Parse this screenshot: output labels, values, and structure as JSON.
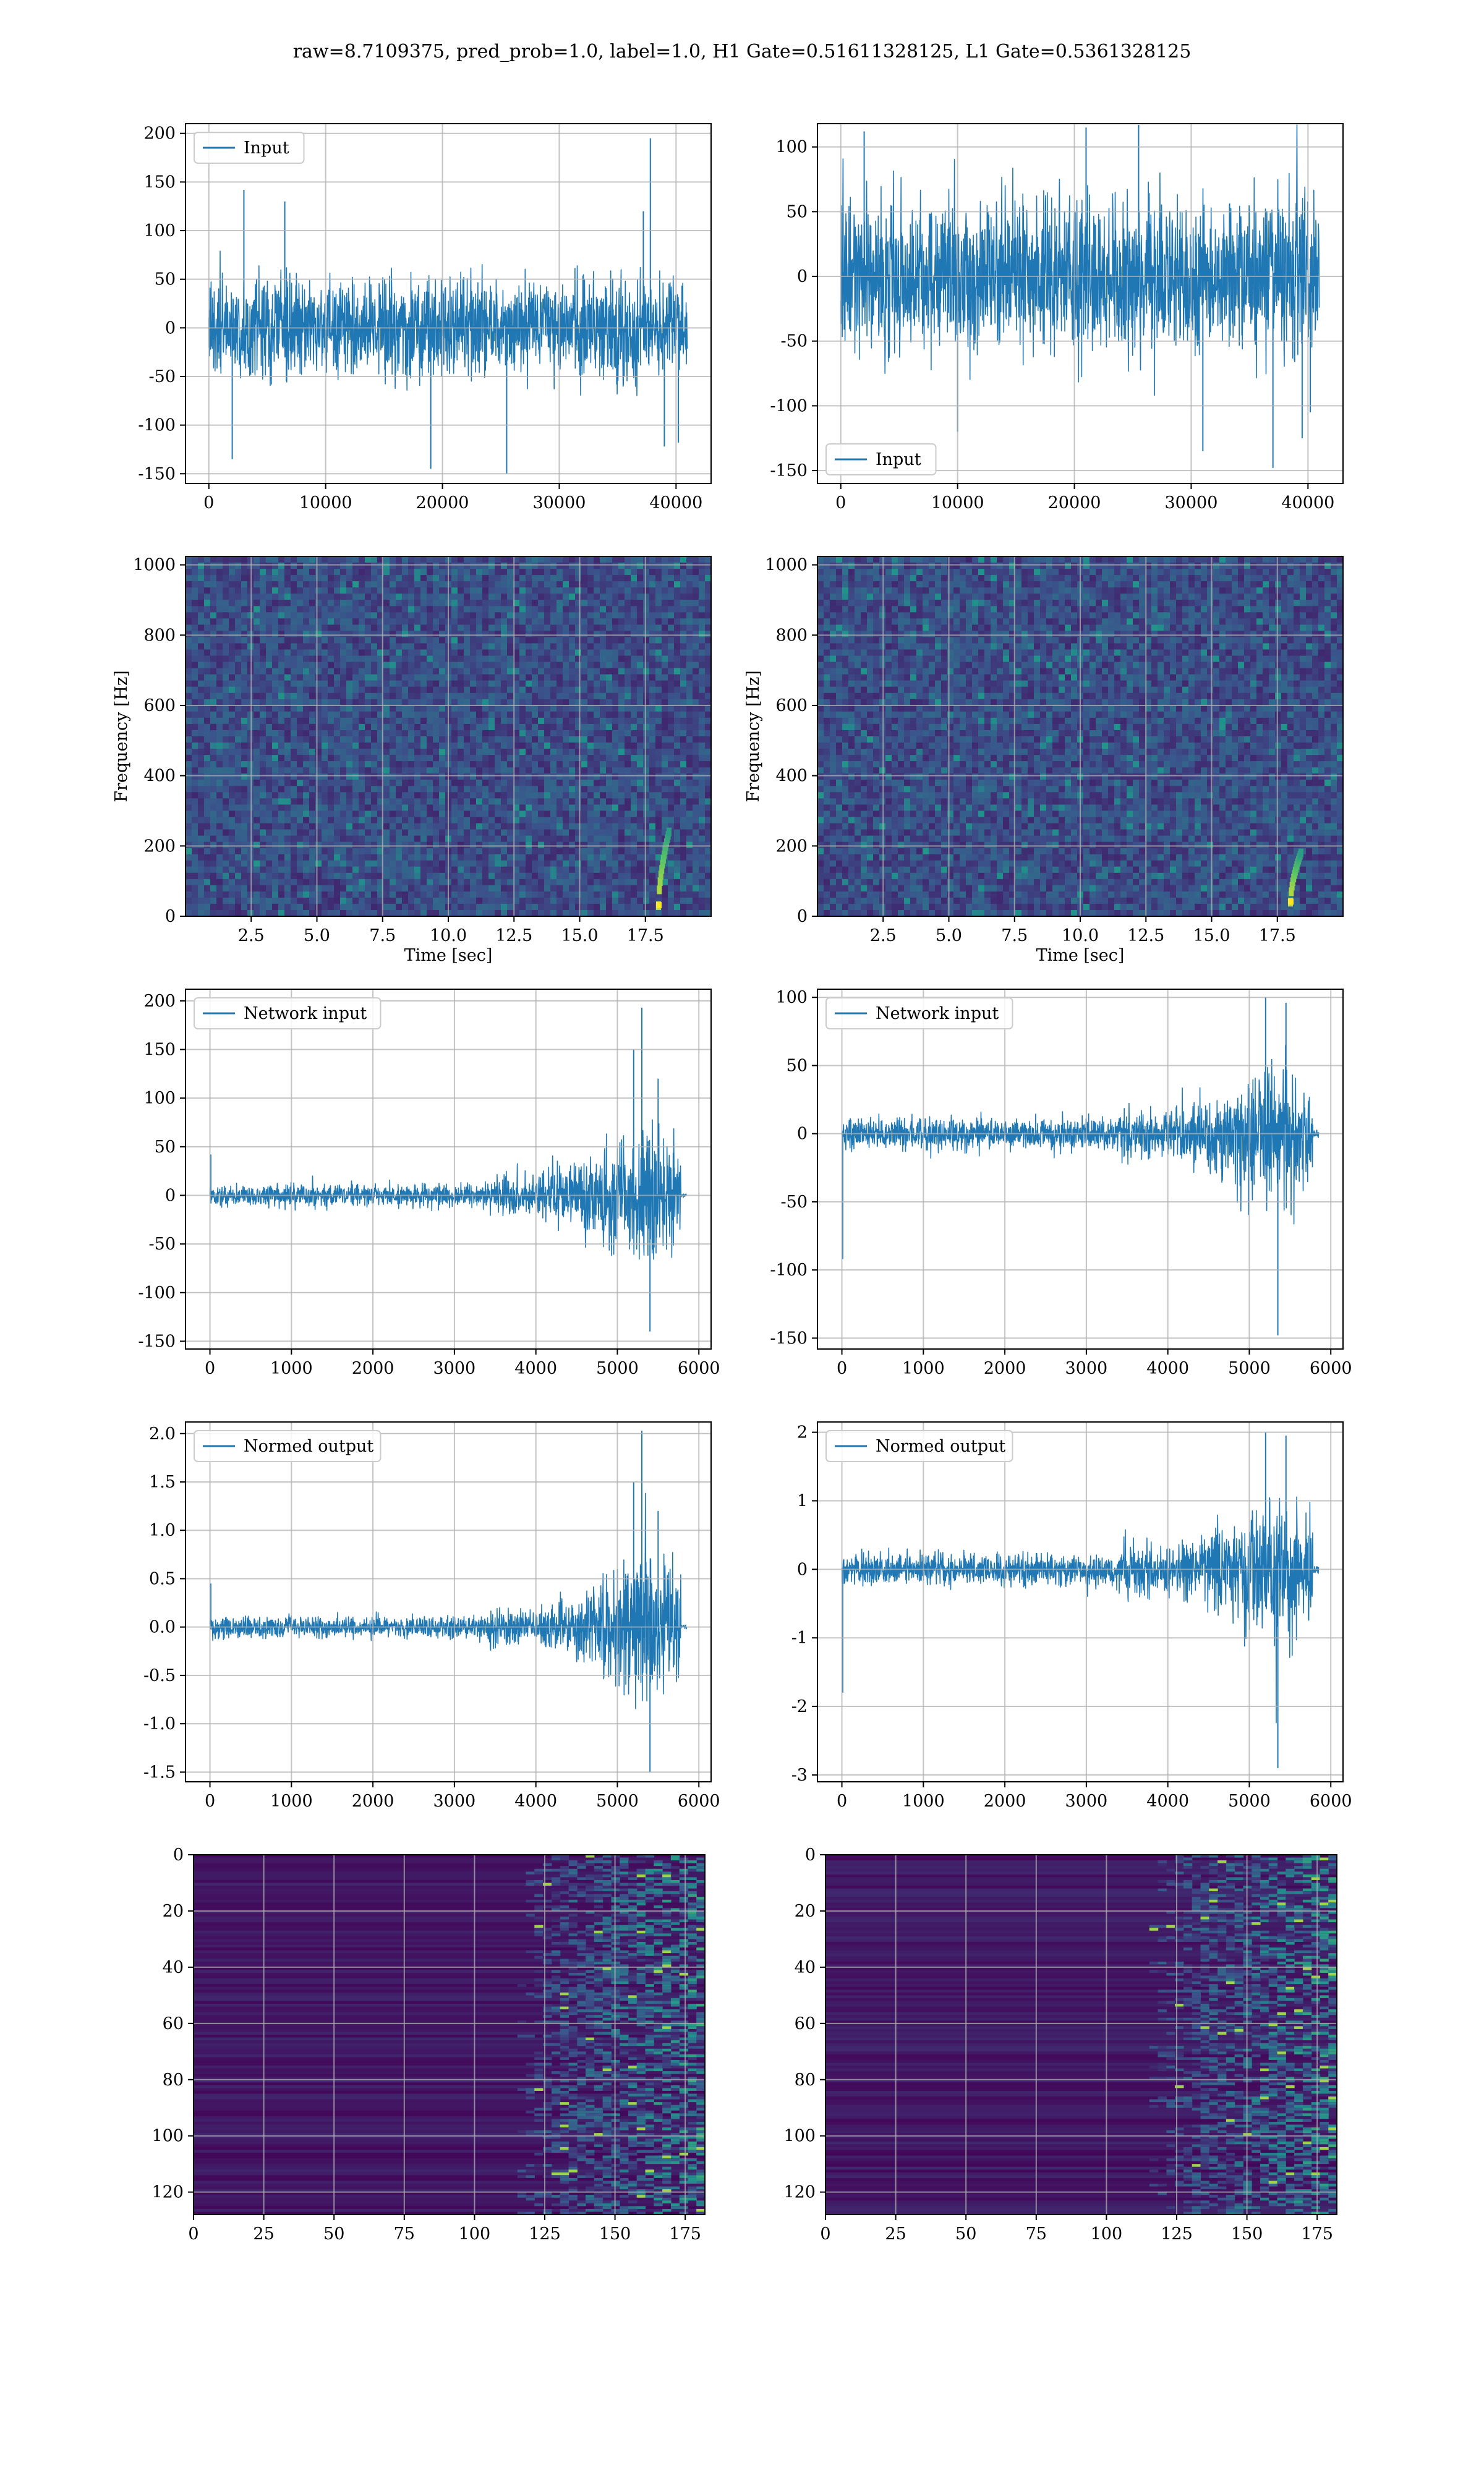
{
  "suptitle": "raw=8.7109375, pred_prob=1.0, label=1.0, H1 Gate=0.51611328125, L1 Gate=0.5361328125",
  "colors": {
    "line": "#1f77b4",
    "grid": "#b0b0b0",
    "viridis_dark": "#440154",
    "viridis_purple": "#46327e",
    "viridis_teal": "#2a788e",
    "viridis_green": "#5ec962",
    "viridis_yellow": "#fde725"
  },
  "chart_data": [
    {
      "id": "h1-input",
      "type": "line",
      "legend": "Input",
      "legend_loc": "upper left",
      "xlim": [
        -2000,
        43000
      ],
      "ylim": [
        -160,
        210
      ],
      "xticks": [
        0,
        10000,
        20000,
        30000,
        40000
      ],
      "yticks": [
        -150,
        -100,
        -50,
        0,
        50,
        100,
        150,
        200
      ],
      "x_range": [
        0,
        40960
      ],
      "baseline_amp": 75,
      "peak_amp": 75,
      "peak_at": 0.5,
      "spikes": [
        [
          2000,
          -135
        ],
        [
          3000,
          142
        ],
        [
          6500,
          130
        ],
        [
          19000,
          -145
        ],
        [
          25500,
          -150
        ],
        [
          37200,
          120
        ],
        [
          37800,
          195
        ],
        [
          39000,
          -122
        ],
        [
          40200,
          -118
        ]
      ],
      "grid": true
    },
    {
      "id": "l1-input",
      "type": "line",
      "legend": "Input",
      "legend_loc": "lower left",
      "xlim": [
        -2000,
        43000
      ],
      "ylim": [
        -160,
        118
      ],
      "xticks": [
        0,
        10000,
        20000,
        30000,
        40000
      ],
      "yticks": [
        -150,
        -100,
        -50,
        0,
        50,
        100
      ],
      "x_range": [
        0,
        40960
      ],
      "baseline_amp": 85,
      "peak_amp": 85,
      "peak_at": 0.5,
      "spikes": [
        [
          2000,
          112
        ],
        [
          10000,
          -120
        ],
        [
          21000,
          115
        ],
        [
          25500,
          118
        ],
        [
          31000,
          -135
        ],
        [
          37000,
          -148
        ],
        [
          39500,
          -125
        ],
        [
          40200,
          -105
        ]
      ],
      "grid": true
    },
    {
      "id": "h1-spectrogram",
      "type": "heatmap",
      "xlabel": "Time [sec]",
      "ylabel": "Frequency [Hz]",
      "xlim": [
        0,
        20
      ],
      "ylim": [
        0,
        1024
      ],
      "xticks": [
        2.5,
        5.0,
        7.5,
        10.0,
        12.5,
        15.0,
        17.5
      ],
      "yticks": [
        0,
        200,
        400,
        600,
        800,
        1000
      ],
      "chirp": {
        "t_start": 18.0,
        "t_end": 18.4,
        "f_start": 30,
        "f_end": 240
      },
      "grid": true
    },
    {
      "id": "l1-spectrogram",
      "type": "heatmap",
      "xlabel": "Time [sec]",
      "ylabel": "Frequency [Hz]",
      "xlim": [
        0,
        20
      ],
      "ylim": [
        0,
        1024
      ],
      "xticks": [
        2.5,
        5.0,
        7.5,
        10.0,
        12.5,
        15.0,
        17.5
      ],
      "yticks": [
        0,
        200,
        400,
        600,
        800,
        1000
      ],
      "chirp": {
        "t_start": 18.0,
        "t_end": 18.4,
        "f_start": 40,
        "f_end": 180
      },
      "grid": true
    },
    {
      "id": "h1-network-input",
      "type": "line",
      "legend": "Network input",
      "legend_loc": "upper left",
      "xlim": [
        -300,
        6150
      ],
      "ylim": [
        -158,
        212
      ],
      "xticks": [
        0,
        1000,
        2000,
        3000,
        4000,
        5000,
        6000
      ],
      "yticks": [
        -150,
        -100,
        -50,
        0,
        50,
        100,
        150,
        200
      ],
      "x_range": [
        0,
        5850
      ],
      "baseline_amp": 16,
      "peak_amp": 120,
      "peak_at": 5350,
      "decay_end": 5780,
      "spikes": [
        [
          10,
          42
        ],
        [
          5300,
          193
        ],
        [
          5400,
          -140
        ],
        [
          5200,
          150
        ],
        [
          5500,
          120
        ]
      ],
      "grid": true
    },
    {
      "id": "l1-network-input",
      "type": "line",
      "legend": "Network input",
      "legend_loc": "upper left",
      "xlim": [
        -300,
        6150
      ],
      "ylim": [
        -158,
        106
      ],
      "xticks": [
        0,
        1000,
        2000,
        3000,
        4000,
        5000,
        6000
      ],
      "yticks": [
        -150,
        -100,
        -50,
        0,
        50,
        100
      ],
      "x_range": [
        0,
        5850
      ],
      "baseline_amp": 16,
      "peak_amp": 80,
      "peak_at": 5300,
      "decay_end": 5780,
      "spikes": [
        [
          10,
          -92
        ],
        [
          5350,
          -148
        ],
        [
          5200,
          100
        ],
        [
          5450,
          96
        ]
      ],
      "grid": true
    },
    {
      "id": "h1-normed-output",
      "type": "line",
      "legend": "Normed output",
      "legend_loc": "upper left",
      "xlim": [
        -300,
        6150
      ],
      "ylim": [
        -1.6,
        2.12
      ],
      "xticks": [
        0,
        1000,
        2000,
        3000,
        4000,
        5000,
        6000
      ],
      "yticks": [
        -1.5,
        -1.0,
        -0.5,
        0.0,
        0.5,
        1.0,
        1.5,
        2.0
      ],
      "x_range": [
        0,
        5850
      ],
      "baseline_amp": 0.16,
      "peak_amp": 1.2,
      "peak_at": 5350,
      "decay_end": 5780,
      "spikes": [
        [
          10,
          0.45
        ],
        [
          5300,
          2.03
        ],
        [
          5400,
          -1.5
        ],
        [
          5200,
          1.5
        ],
        [
          5500,
          1.2
        ]
      ],
      "grid": true
    },
    {
      "id": "l1-normed-output",
      "type": "line",
      "legend": "Normed output",
      "legend_loc": "upper left",
      "xlim": [
        -300,
        6150
      ],
      "ylim": [
        -3.1,
        2.15
      ],
      "xticks": [
        0,
        1000,
        2000,
        3000,
        4000,
        5000,
        6000
      ],
      "yticks": [
        -3,
        -2,
        -1,
        0,
        1,
        2
      ],
      "x_range": [
        0,
        5850
      ],
      "baseline_amp": 0.33,
      "peak_amp": 1.7,
      "peak_at": 5300,
      "decay_end": 5780,
      "spikes": [
        [
          10,
          -1.8
        ],
        [
          5350,
          -2.9
        ],
        [
          5200,
          2.0
        ],
        [
          5450,
          1.95
        ]
      ],
      "grid": true
    },
    {
      "id": "h1-features",
      "type": "heatmap",
      "xlim": [
        0,
        182
      ],
      "ylim": [
        128,
        0
      ],
      "xticks": [
        0,
        25,
        50,
        75,
        100,
        125,
        150,
        175
      ],
      "yticks": [
        0,
        20,
        40,
        60,
        80,
        100,
        120
      ],
      "rows": 128,
      "cols": 182,
      "activity_start": 125,
      "grid": true
    },
    {
      "id": "l1-features",
      "type": "heatmap",
      "xlim": [
        0,
        182
      ],
      "ylim": [
        128,
        0
      ],
      "xticks": [
        0,
        25,
        50,
        75,
        100,
        125,
        150,
        175
      ],
      "yticks": [
        0,
        20,
        40,
        60,
        80,
        100,
        120
      ],
      "rows": 128,
      "cols": 182,
      "activity_start": 125,
      "grid": true
    }
  ]
}
